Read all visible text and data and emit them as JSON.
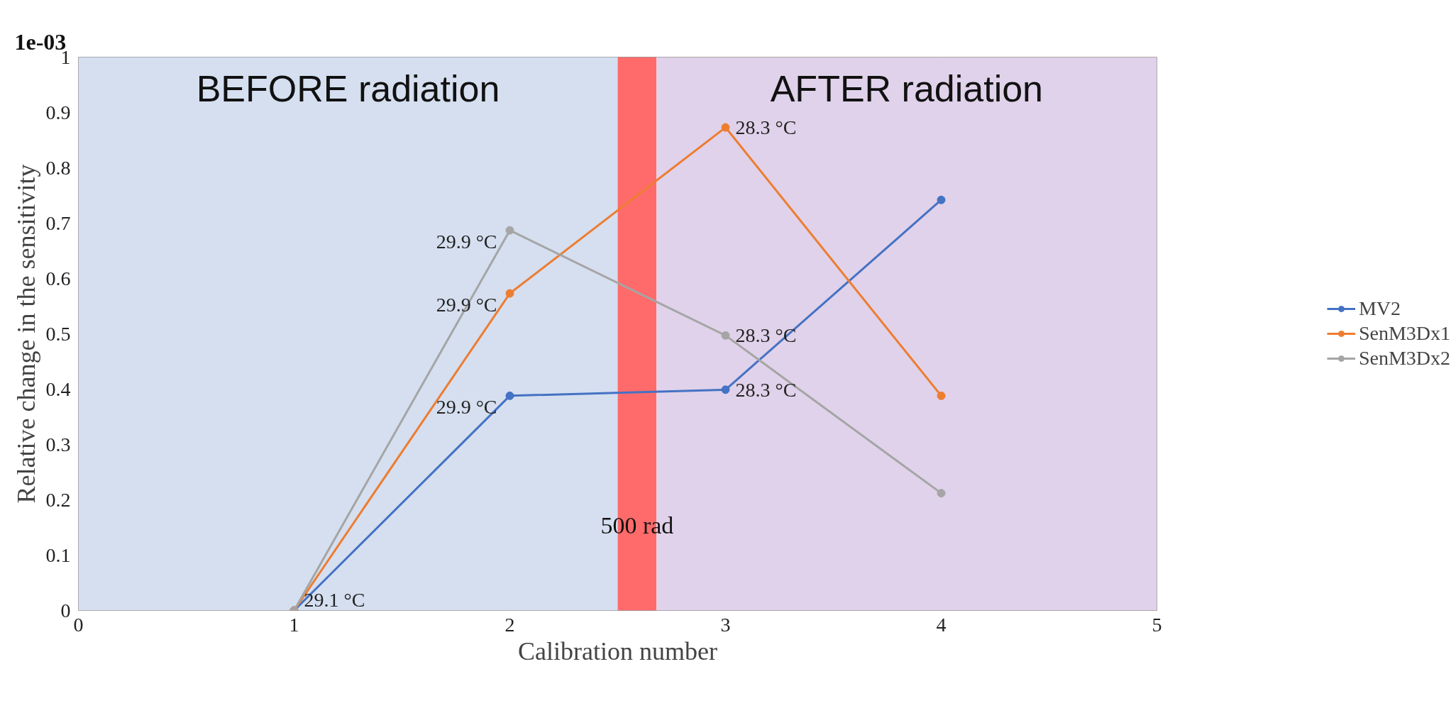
{
  "chart_data": {
    "type": "line",
    "xlabel": "Calibration number",
    "ylabel": "Relative change in the sensitivity",
    "x": [
      1,
      2,
      3,
      4
    ],
    "xlim": [
      0,
      5
    ],
    "xticks": [
      0,
      1,
      2,
      3,
      4,
      5
    ],
    "ylim": [
      0,
      1
    ],
    "yticks": [
      0,
      0.1,
      0.2,
      0.3,
      0.4,
      0.5,
      0.6,
      0.7,
      0.8,
      0.9,
      1
    ],
    "series": [
      {
        "name": "MV2",
        "color": "#4472c4",
        "values": [
          0,
          0.388,
          0.399,
          0.742
        ]
      },
      {
        "name": "SenM3Dx1",
        "color": "#ed7d31",
        "values": [
          0,
          0.573,
          0.873,
          0.388
        ]
      },
      {
        "name": "SenM3Dx2",
        "color": "#a5a5a5",
        "values": [
          0,
          0.687,
          0.497,
          0.212
        ]
      }
    ],
    "bands": [
      {
        "axis": "x",
        "from": 0,
        "to": 2.5,
        "label": "BEFORE radiation",
        "color": "#d5dff0"
      },
      {
        "axis": "x",
        "from": 2.5,
        "to": 2.68,
        "label": "500 rad",
        "color": "#ff6b6b"
      },
      {
        "axis": "x",
        "from": 2.68,
        "to": 5,
        "label": "AFTER radiation",
        "color": "#e0d2ea"
      }
    ],
    "annotations": [
      "1e-03",
      {
        "text": "29.1 °C",
        "x": 1,
        "y": 0
      },
      {
        "text": "29.9 °C",
        "x": 2,
        "y": 0.388
      },
      {
        "text": "29.9 °C",
        "x": 2,
        "y": 0.573
      },
      {
        "text": "29.9 °C",
        "x": 2,
        "y": 0.687
      },
      {
        "text": "28.3 °C",
        "x": 3,
        "y": 0.873
      },
      {
        "text": "28.3 °C",
        "x": 3,
        "y": 0.497
      },
      {
        "text": "28.3 °C",
        "x": 3,
        "y": 0.399
      }
    ],
    "grid": true,
    "legend": "right",
    "marker": "circle",
    "line_style": "solid"
  }
}
